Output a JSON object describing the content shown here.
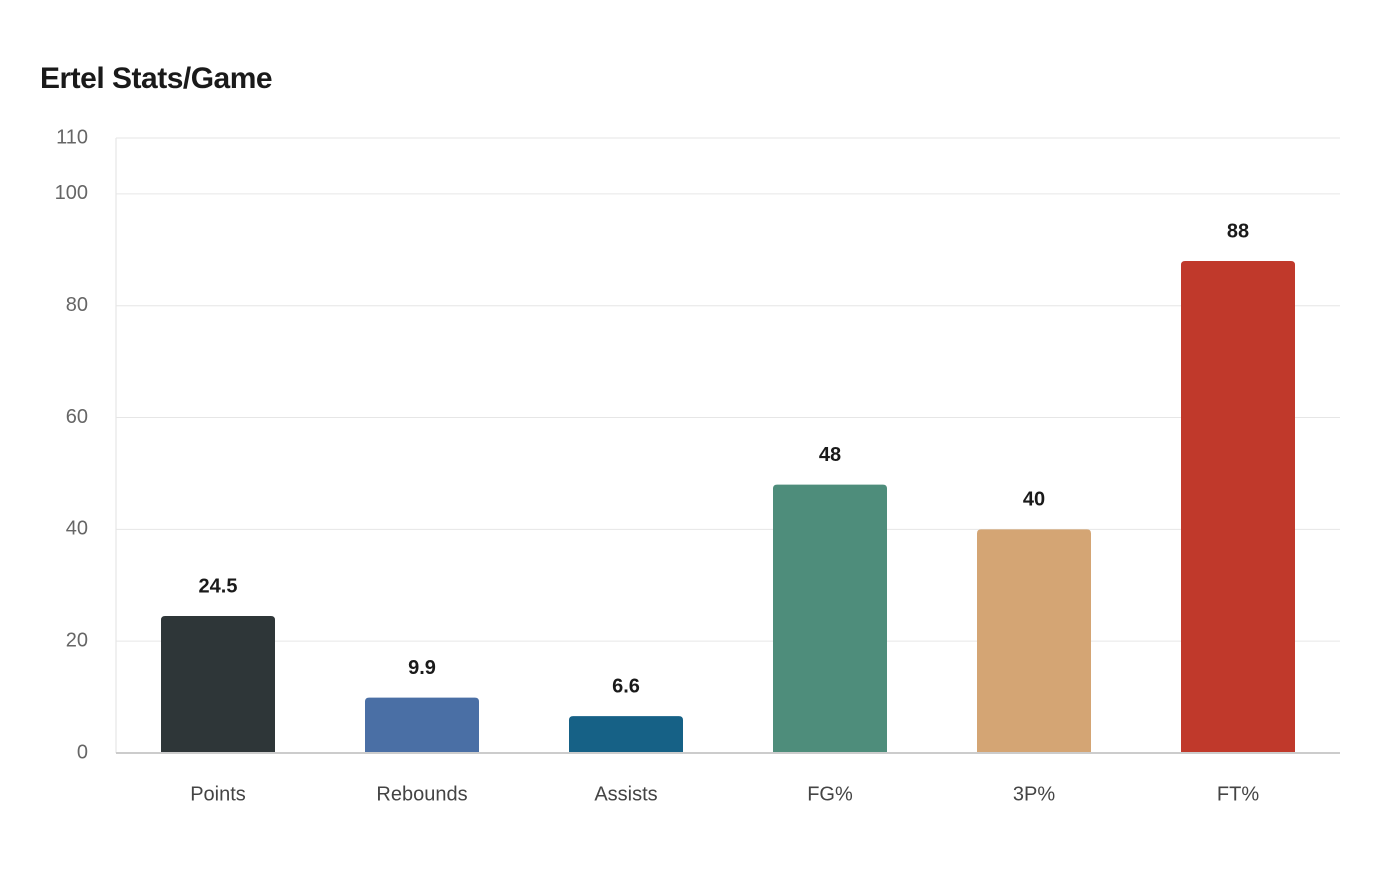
{
  "chart_data": {
    "type": "bar",
    "title": "Ertel Stats/Game",
    "categories": [
      "Points",
      "Rebounds",
      "Assists",
      "FG%",
      "3P%",
      "FT%"
    ],
    "values": [
      24.5,
      9.9,
      6.6,
      48,
      40,
      88
    ],
    "colors": [
      "#2e3638",
      "#4a6fa5",
      "#166186",
      "#4e8d7b",
      "#d4a574",
      "#c0392b"
    ],
    "ylim": [
      0,
      110
    ],
    "yticks": [
      0,
      20,
      40,
      60,
      80,
      100,
      110
    ],
    "grid": true
  }
}
